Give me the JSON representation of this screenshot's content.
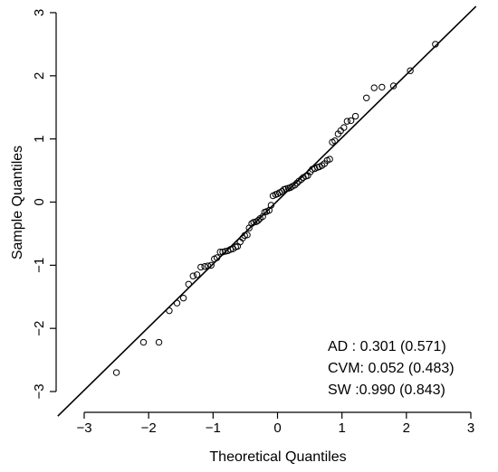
{
  "chart_data": {
    "type": "scatter",
    "title": "",
    "xlabel": "Theoretical Quantiles",
    "ylabel": "Sample Quantiles",
    "xlim": [
      -3,
      3
    ],
    "ylim": [
      -3,
      3
    ],
    "x_ticks": [
      -3,
      -2,
      -1,
      0,
      1,
      2,
      3
    ],
    "y_ticks": [
      -3,
      -2,
      -1,
      0,
      1,
      2,
      3
    ],
    "x_tick_labels": [
      "−3",
      "−2",
      "−1",
      "0",
      "1",
      "2",
      "3"
    ],
    "y_tick_labels": [
      "−3",
      "−2",
      "−1",
      "0",
      "1",
      "2",
      "3"
    ],
    "grid": false,
    "reference_line": {
      "intercept": 0.02,
      "slope": 1.0
    },
    "stats": [
      "AD : 0.301 (0.571)",
      "CVM: 0.052 (0.483)",
      "SW :0.990 (0.843)"
    ],
    "points": [
      [
        -2.5,
        -2.7
      ],
      [
        -2.08,
        -2.22
      ],
      [
        -1.84,
        -2.22
      ],
      [
        -1.68,
        -1.72
      ],
      [
        -1.56,
        -1.6
      ],
      [
        -1.46,
        -1.52
      ],
      [
        -1.38,
        -1.3
      ],
      [
        -1.31,
        -1.17
      ],
      [
        -1.25,
        -1.15
      ],
      [
        -1.19,
        -1.03
      ],
      [
        -1.13,
        -1.02
      ],
      [
        -1.08,
        -1.01
      ],
      [
        -1.03,
        -1.0
      ],
      [
        -0.98,
        -0.9
      ],
      [
        -0.94,
        -0.88
      ],
      [
        -0.89,
        -0.79
      ],
      [
        -0.85,
        -0.79
      ],
      [
        -0.81,
        -0.78
      ],
      [
        -0.77,
        -0.77
      ],
      [
        -0.73,
        -0.75
      ],
      [
        -0.69,
        -0.74
      ],
      [
        -0.65,
        -0.71
      ],
      [
        -0.62,
        -0.7
      ],
      [
        -0.58,
        -0.63
      ],
      [
        -0.54,
        -0.57
      ],
      [
        -0.51,
        -0.53
      ],
      [
        -0.47,
        -0.52
      ],
      [
        -0.44,
        -0.41
      ],
      [
        -0.4,
        -0.34
      ],
      [
        -0.37,
        -0.32
      ],
      [
        -0.33,
        -0.31
      ],
      [
        -0.3,
        -0.29
      ],
      [
        -0.27,
        -0.26
      ],
      [
        -0.23,
        -0.23
      ],
      [
        -0.2,
        -0.16
      ],
      [
        -0.17,
        -0.15
      ],
      [
        -0.13,
        -0.13
      ],
      [
        -0.1,
        -0.05
      ],
      [
        -0.07,
        0.1
      ],
      [
        -0.03,
        0.12
      ],
      [
        0.0,
        0.13
      ],
      [
        0.03,
        0.15
      ],
      [
        0.07,
        0.17
      ],
      [
        0.1,
        0.2
      ],
      [
        0.13,
        0.21
      ],
      [
        0.17,
        0.22
      ],
      [
        0.2,
        0.23
      ],
      [
        0.23,
        0.25
      ],
      [
        0.27,
        0.27
      ],
      [
        0.3,
        0.3
      ],
      [
        0.33,
        0.33
      ],
      [
        0.37,
        0.36
      ],
      [
        0.4,
        0.39
      ],
      [
        0.44,
        0.41
      ],
      [
        0.47,
        0.42
      ],
      [
        0.51,
        0.48
      ],
      [
        0.54,
        0.52
      ],
      [
        0.58,
        0.53
      ],
      [
        0.62,
        0.55
      ],
      [
        0.65,
        0.56
      ],
      [
        0.69,
        0.58
      ],
      [
        0.73,
        0.61
      ],
      [
        0.77,
        0.66
      ],
      [
        0.81,
        0.68
      ],
      [
        0.85,
        0.95
      ],
      [
        0.89,
        0.97
      ],
      [
        0.94,
        1.08
      ],
      [
        0.98,
        1.13
      ],
      [
        1.03,
        1.18
      ],
      [
        1.08,
        1.28
      ],
      [
        1.14,
        1.29
      ],
      [
        1.21,
        1.36
      ],
      [
        1.38,
        1.65
      ],
      [
        1.5,
        1.81
      ],
      [
        1.62,
        1.82
      ],
      [
        1.8,
        1.84
      ],
      [
        2.06,
        2.08
      ],
      [
        2.45,
        2.5
      ]
    ]
  }
}
